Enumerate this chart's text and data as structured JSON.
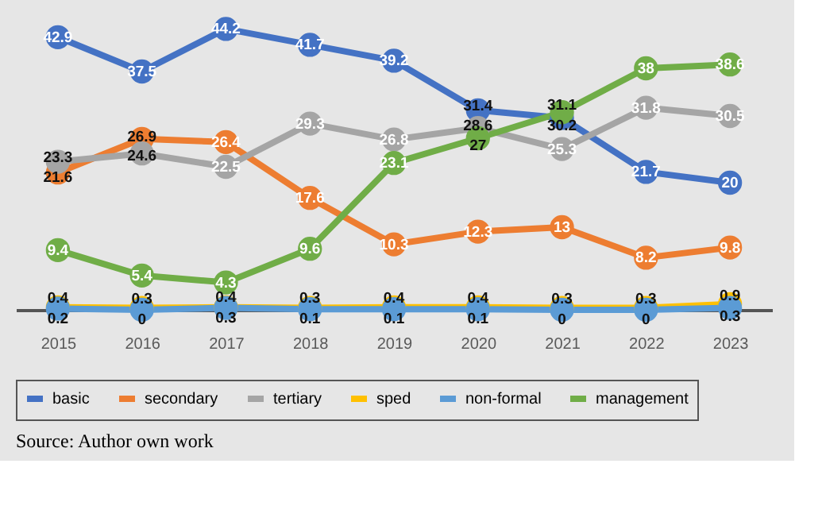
{
  "chart_data": {
    "type": "line",
    "categories": [
      "2015",
      "2016",
      "2017",
      "2018",
      "2019",
      "2020",
      "2021",
      "2022",
      "2023"
    ],
    "series": [
      {
        "name": "basic",
        "color": "#4472c4",
        "values": [
          42.9,
          37.5,
          44.2,
          41.7,
          39.2,
          31.4,
          30.2,
          21.7,
          20
        ]
      },
      {
        "name": "secondary",
        "color": "#ed7d31",
        "values": [
          21.6,
          26.9,
          26.4,
          17.6,
          10.3,
          12.3,
          13,
          8.2,
          9.8
        ]
      },
      {
        "name": "tertiary",
        "color": "#a5a5a5",
        "values": [
          23.3,
          24.6,
          22.5,
          29.3,
          26.8,
          28.6,
          25.3,
          31.8,
          30.5
        ]
      },
      {
        "name": "sped",
        "color": "#ffc000",
        "values": [
          0.4,
          0.3,
          0.4,
          0.3,
          0.4,
          0.4,
          0.3,
          0.3,
          0.9
        ]
      },
      {
        "name": "non-formal",
        "color": "#5b9bd5",
        "values": [
          0.2,
          0,
          0.3,
          0.1,
          0.1,
          0.1,
          0,
          0,
          0.3
        ]
      },
      {
        "name": "management",
        "color": "#70ad47",
        "values": [
          9.4,
          5.4,
          4.3,
          9.6,
          23.1,
          27,
          31.1,
          38,
          38.6
        ]
      }
    ],
    "tick_labels": "x",
    "data_labels": true,
    "marker": "circle",
    "line_style": "solid",
    "grid": false,
    "legend": "bottom",
    "annotations": [
      "Source: Author own work"
    ]
  }
}
